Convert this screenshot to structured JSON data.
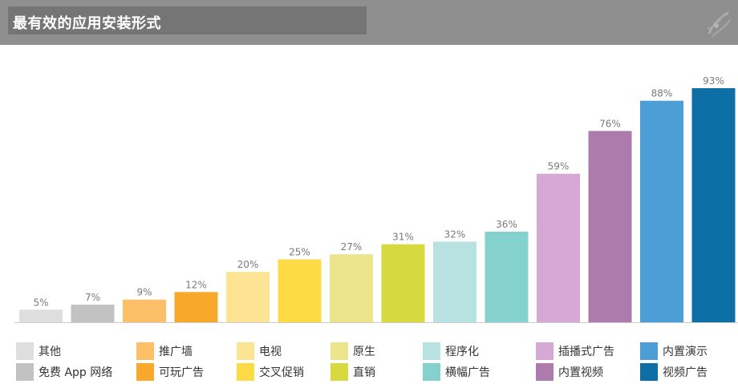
{
  "header": {
    "title": "最有效的应用安装形式"
  },
  "logo": {
    "icon": "swirl-logo-icon"
  },
  "chart_data": {
    "type": "bar",
    "categories": [
      "其他",
      "免费 App 网络",
      "推广墙",
      "可玩广告",
      "电视",
      "交叉促销",
      "原生",
      "直销",
      "程序化",
      "横幅广告",
      "插播式广告",
      "内置视频",
      "内置演示",
      "视频广告"
    ],
    "values": [
      5,
      7,
      9,
      12,
      20,
      25,
      27,
      31,
      32,
      36,
      59,
      76,
      88,
      93
    ],
    "value_labels": [
      "5%",
      "7%",
      "9%",
      "12%",
      "20%",
      "25%",
      "27%",
      "31%",
      "32%",
      "36%",
      "59%",
      "76%",
      "88%",
      "93%"
    ],
    "colors": [
      "#dedede",
      "#c2c2c2",
      "#fdc068",
      "#f8a82a",
      "#fde494",
      "#fddb44",
      "#ece58c",
      "#d8d83f",
      "#b8e1e2",
      "#85d1ce",
      "#d6a8d5",
      "#ae7bad",
      "#4c9fd6",
      "#0e6ea6"
    ],
    "ylim": [
      0,
      100
    ],
    "grid": false,
    "legend_position": "bottom"
  },
  "legend": [
    {
      "label": "其他",
      "color": "#dedede"
    },
    {
      "label": "免费 App 网络",
      "color": "#c2c2c2"
    },
    {
      "label": "推广墙",
      "color": "#fdc068"
    },
    {
      "label": "可玩广告",
      "color": "#f8a82a"
    },
    {
      "label": "电视",
      "color": "#fde494"
    },
    {
      "label": "交叉促销",
      "color": "#fddb44"
    },
    {
      "label": "原生",
      "color": "#ece58c"
    },
    {
      "label": "直销",
      "color": "#d8d83f"
    },
    {
      "label": "程序化",
      "color": "#b8e1e2"
    },
    {
      "label": "横幅广告",
      "color": "#85d1ce"
    },
    {
      "label": "插播式广告",
      "color": "#d6a8d5"
    },
    {
      "label": "内置视频",
      "color": "#ae7bad"
    },
    {
      "label": "内置演示",
      "color": "#4c9fd6"
    },
    {
      "label": "视频广告",
      "color": "#0e6ea6"
    }
  ]
}
